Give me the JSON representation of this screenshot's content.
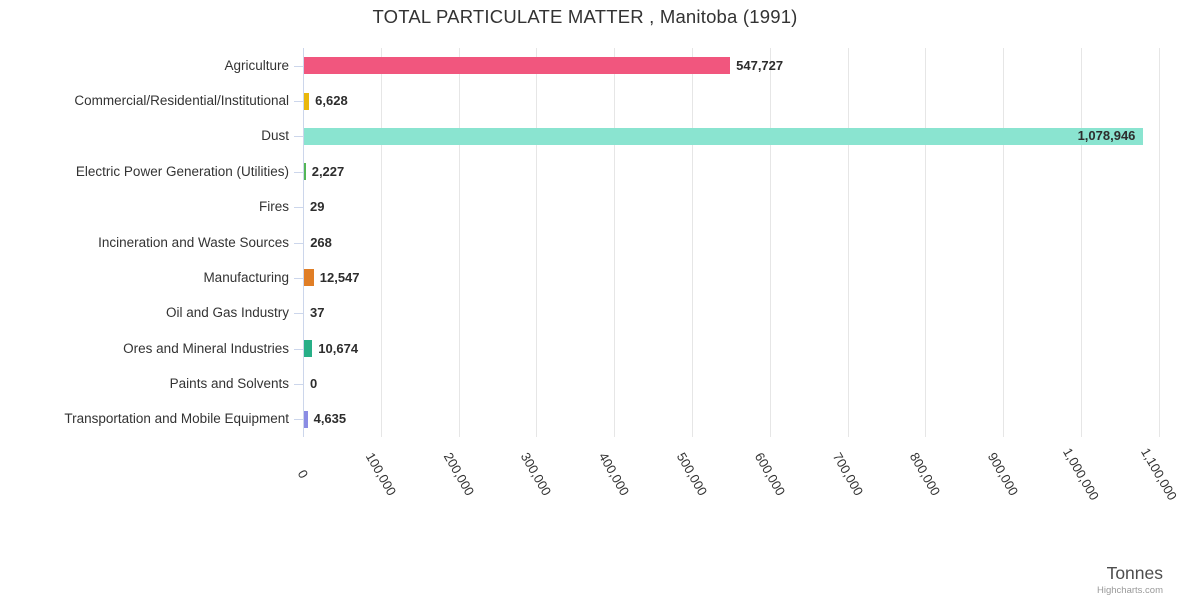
{
  "chart_data": {
    "type": "bar",
    "orientation": "horizontal",
    "title": "TOTAL PARTICULATE MATTER , Manitoba (1991)",
    "categories": [
      "Agriculture",
      "Commercial/Residential/Institutional",
      "Dust",
      "Electric Power Generation (Utilities)",
      "Fires",
      "Incineration and Waste Sources",
      "Manufacturing",
      "Oil and Gas Industry",
      "Ores and Mineral Industries",
      "Paints and Solvents",
      "Transportation and Mobile Equipment"
    ],
    "values": [
      547727,
      6628,
      1078946,
      2227,
      29,
      268,
      12547,
      37,
      10674,
      0,
      4635
    ],
    "value_labels": [
      "547,727",
      "6,628",
      "1,078,946",
      "2,227",
      "29",
      "268",
      "12,547",
      "37",
      "10,674",
      "0",
      "4,635"
    ],
    "bar_colors": [
      "#f1567e",
      "#e9b70c",
      "#8ae4d0",
      "#53b657",
      "#888888",
      "#888888",
      "#e07e26",
      "#888888",
      "#27af87",
      "#888888",
      "#8a8ce4"
    ],
    "xlabel": "Tonnes",
    "x_ticks": [
      "0",
      "100,000",
      "200,000",
      "300,000",
      "400,000",
      "500,000",
      "600,000",
      "700,000",
      "800,000",
      "900,000",
      "1,000,000",
      "1,100,000"
    ],
    "x_tick_interval": 100000,
    "xlim": [
      0,
      1100000
    ],
    "grid": true,
    "legend": false,
    "data_label_style": "bold, outside bar end (inside right-aligned when bar reaches plot edge)"
  },
  "credits": {
    "label": "Highcharts.com"
  },
  "colors": {
    "background": "#ffffff",
    "grid": "#e6e6e6",
    "axis": "#ccd6eb",
    "title_text": "#333333",
    "category_text": "#333333",
    "value_text": "#2d2d2d",
    "axis_title_text": "#4d4d4d",
    "credits_text": "#999999"
  }
}
